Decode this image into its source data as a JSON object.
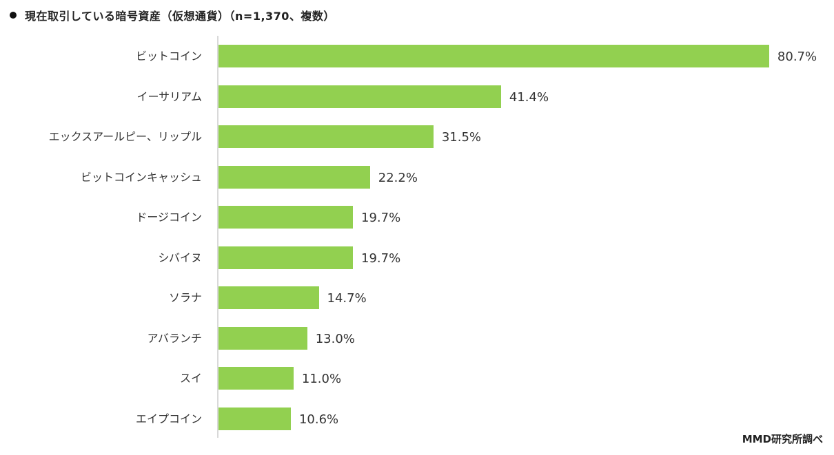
{
  "title": "現在取引している暗号資産（仮想通貨）（n=1,370、複数）",
  "source": "MMD研究所調べ",
  "colors": {
    "bar": "#92d050",
    "axis": "#d9d9d9",
    "text": "#333333"
  },
  "chart_data": {
    "type": "bar",
    "orientation": "horizontal",
    "title": "現在取引している暗号資産（仮想通貨）（n=1,370、複数）",
    "xlabel": "",
    "ylabel": "",
    "unit": "%",
    "grid": false,
    "legend": null,
    "categories": [
      "ビットコイン",
      "イーサリアム",
      "エックスアールピー、リップル",
      "ビットコインキャッシュ",
      "ドージコイン",
      "シバイヌ",
      "ソラナ",
      "アバランチ",
      "スイ",
      "エイプコイン"
    ],
    "values": [
      80.7,
      41.4,
      31.5,
      22.2,
      19.7,
      19.7,
      14.7,
      13.0,
      11.0,
      10.6
    ],
    "value_labels": [
      "80.7%",
      "41.4%",
      "31.5%",
      "22.2%",
      "19.7%",
      "19.7%",
      "14.7%",
      "13.0%",
      "11.0%",
      "10.6%"
    ],
    "annotation": "MMD研究所調べ"
  }
}
